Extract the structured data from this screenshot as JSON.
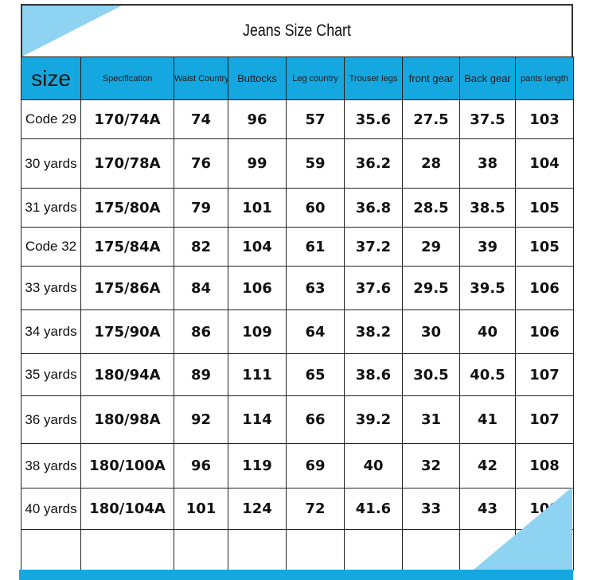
{
  "title": "Jeans Size Chart",
  "columns": [
    "size",
    "Specification",
    "Waist Country",
    "Buttocks",
    "Leg country",
    "Trouser legs",
    "front gear",
    "Back gear",
    "pants length"
  ],
  "rows": [
    [
      "Code 29",
      "170/74A",
      "74",
      "96",
      "57",
      "35.6",
      "27.5",
      "37.5",
      "103"
    ],
    [
      "30 yards",
      "170/78A",
      "76",
      "99",
      "59",
      "36.2",
      "28",
      "38",
      "104"
    ],
    [
      "31 yards",
      "175/80A",
      "79",
      "101",
      "60",
      "36.8",
      "28.5",
      "38.5",
      "105"
    ],
    [
      "Code 32",
      "175/84A",
      "82",
      "104",
      "61",
      "37.2",
      "29",
      "39",
      "105"
    ],
    [
      "33 yards",
      "175/86A",
      "84",
      "106",
      "63",
      "37.6",
      "29.5",
      "39.5",
      "106"
    ],
    [
      "34 yards",
      "175/90A",
      "86",
      "109",
      "64",
      "38.2",
      "30",
      "40",
      "106"
    ],
    [
      "35 yards",
      "180/94A",
      "89",
      "111",
      "65",
      "38.6",
      "30.5",
      "40.5",
      "107"
    ],
    [
      "36 yards",
      "180/98A",
      "92",
      "114",
      "66",
      "39.2",
      "31",
      "41",
      "107"
    ],
    [
      "38 yards",
      "180/100A",
      "96",
      "119",
      "69",
      "40",
      "32",
      "42",
      "108"
    ],
    [
      "40 yards",
      "180/104A",
      "101",
      "124",
      "72",
      "41.6",
      "33",
      "43",
      "108"
    ]
  ],
  "colors": {
    "header": "#15a7e0",
    "accent_light": "#8fd3f2"
  }
}
